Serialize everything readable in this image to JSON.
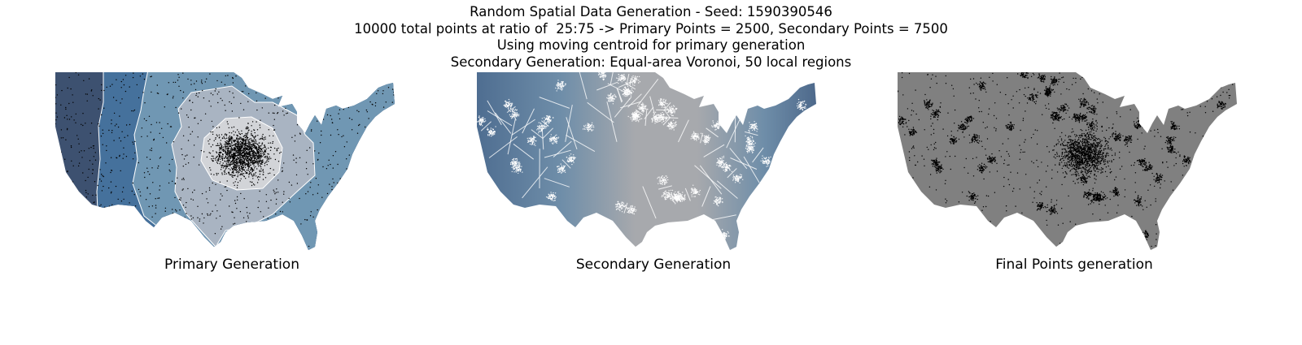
{
  "header": {
    "lines": [
      "Random Spatial Data Generation - Seed: 1590390546",
      "10000 total points at ratio of  25:75 -> Primary Points = 2500, Secondary Points = 7500",
      "Using moving centroid for primary generation",
      "Secondary Generation: Equal-area Voronoi, 50 local regions"
    ]
  },
  "panels": [
    {
      "label": "Primary Generation"
    },
    {
      "label": "Secondary Generation"
    },
    {
      "label": "Final Points generation"
    }
  ],
  "colors": {
    "band_dark": "#3d5170",
    "band_blue": "#45719c",
    "band_mid": "#7097b3",
    "band_light": "#a9b4c2",
    "band_center": "#d2d4d8",
    "voronoi_center": "#a9a9a9",
    "voronoi_edge": "#496a91",
    "final_fill": "#808080",
    "outline": "#ffffff",
    "point_dark": "#000000",
    "point_light": "#ffffff"
  }
}
